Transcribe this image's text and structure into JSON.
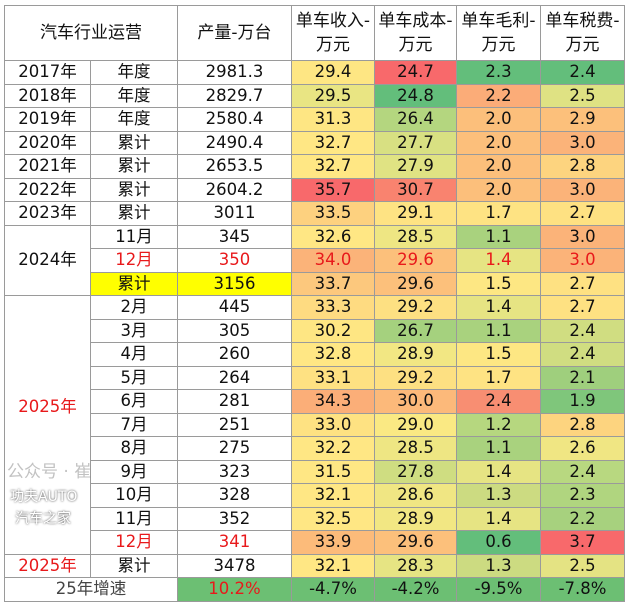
{
  "header": {
    "col_category": "汽车行业运营",
    "col_production": "产量-万台",
    "col_revenue": "单车收入-万元",
    "col_cost": "单车成本-万元",
    "col_margin": "单车毛利-万元",
    "col_tax": "单车税费-万元"
  },
  "rows": [
    {
      "year": "2017年",
      "period": "年度",
      "prod": "2981.3",
      "vals": [
        "29.4",
        "24.7",
        "2.3",
        "2.4"
      ],
      "colors": [
        "#fee683",
        "#f8696b",
        "#63be7b",
        "#63be7b"
      ]
    },
    {
      "year": "2018年",
      "period": "年度",
      "prod": "2829.7",
      "vals": [
        "29.5",
        "24.8",
        "2.2",
        "2.5"
      ],
      "colors": [
        "#e9e583",
        "#63be7b",
        "#fbac78",
        "#dfe283"
      ]
    },
    {
      "year": "2019年",
      "period": "年度",
      "prod": "2580.4",
      "vals": [
        "31.3",
        "26.4",
        "2.0",
        "2.9"
      ],
      "colors": [
        "#fee683",
        "#b4d67f",
        "#fcbf7b",
        "#fcc07b"
      ]
    },
    {
      "year": "2020年",
      "period": "累计",
      "prod": "2490.4",
      "vals": [
        "32.7",
        "27.7",
        "2.0",
        "3.0"
      ],
      "colors": [
        "#ffe784",
        "#d8e082",
        "#fcbf7b",
        "#fbb379"
      ]
    },
    {
      "year": "2021年",
      "period": "累计",
      "prod": "2653.5",
      "vals": [
        "32.7",
        "27.9",
        "2.0",
        "2.8"
      ],
      "colors": [
        "#ffe784",
        "#e0e383",
        "#fcbf7b",
        "#fdd47f"
      ]
    },
    {
      "year": "2022年",
      "period": "累计",
      "prod": "2604.2",
      "vals": [
        "35.7",
        "30.7",
        "2.0",
        "3.0"
      ],
      "colors": [
        "#f8696b",
        "#f9836f",
        "#fcbf7b",
        "#fbb379"
      ]
    },
    {
      "year": "2023年",
      "period": "累计",
      "prod": "3011",
      "vals": [
        "33.5",
        "29.1",
        "1.7",
        "2.7"
      ],
      "colors": [
        "#fdd17f",
        "#fee383",
        "#fee383",
        "#fee182"
      ]
    },
    {
      "year": "2024年",
      "span": 3,
      "period": "11月",
      "prod": "345",
      "vals": [
        "32.6",
        "28.5",
        "1.1",
        "3.0"
      ],
      "colors": [
        "#ffe784",
        "#eee683",
        "#a9d27e",
        "#fbb379"
      ]
    },
    {
      "period": "12月",
      "prod": "350",
      "red": "all",
      "vals": [
        "34.0",
        "29.6",
        "1.4",
        "3.0"
      ],
      "colors": [
        "#fbb379",
        "#fcc07b",
        "#e6e483",
        "#fbb379"
      ]
    },
    {
      "period": "累计",
      "prod": "3156",
      "highlight": true,
      "vals": [
        "33.7",
        "29.6",
        "1.5",
        "2.7"
      ],
      "colors": [
        "#fcc87d",
        "#fcc07b",
        "#fde783",
        "#fee182"
      ]
    },
    {
      "year": "2025年",
      "yearRed": true,
      "span": 11,
      "period": "2月",
      "prod": "445",
      "vals": [
        "33.3",
        "29.2",
        "1.4",
        "2.7"
      ],
      "colors": [
        "#fedb81",
        "#fde082",
        "#e6e483",
        "#fee182"
      ]
    },
    {
      "period": "3月",
      "prod": "305",
      "vals": [
        "30.2",
        "26.7",
        "1.1",
        "2.4"
      ],
      "colors": [
        "#fee683",
        "#a5d17e",
        "#a9d27e",
        "#d0dd81"
      ]
    },
    {
      "period": "4月",
      "prod": "260",
      "vals": [
        "32.8",
        "28.9",
        "1.5",
        "2.4"
      ],
      "colors": [
        "#ffe784",
        "#f2e783",
        "#fde783",
        "#d0dd81"
      ]
    },
    {
      "period": "5月",
      "prod": "264",
      "vals": [
        "33.1",
        "29.2",
        "1.7",
        "2.1"
      ],
      "colors": [
        "#fee182",
        "#fde082",
        "#fee383",
        "#9fcf7d"
      ]
    },
    {
      "period": "6月",
      "prod": "281",
      "vals": [
        "34.3",
        "30.0",
        "2.4",
        "1.9"
      ],
      "colors": [
        "#fbae78",
        "#fcb97a",
        "#f88e72",
        "#7fc67b"
      ]
    },
    {
      "period": "7月",
      "prod": "251",
      "vals": [
        "33.0",
        "29.0",
        "1.2",
        "2.8"
      ],
      "colors": [
        "#fee282",
        "#fae983",
        "#b6d77f",
        "#fdd47f"
      ]
    },
    {
      "period": "8月",
      "prod": "275",
      "vals": [
        "32.2",
        "28.5",
        "1.1",
        "2.6"
      ],
      "colors": [
        "#ffe784",
        "#eee683",
        "#a9d27e",
        "#f0e683"
      ]
    },
    {
      "period": "9月",
      "prod": "323",
      "vals": [
        "31.5",
        "27.8",
        "1.4",
        "2.4"
      ],
      "colors": [
        "#ffe784",
        "#cfdd81",
        "#e6e483",
        "#b8d880"
      ]
    },
    {
      "period": "10月",
      "prod": "328",
      "vals": [
        "32.1",
        "28.6",
        "1.3",
        "2.3"
      ],
      "colors": [
        "#ffe784",
        "#f0e683",
        "#ccdb81",
        "#b0d57f"
      ]
    },
    {
      "period": "11月",
      "prod": "352",
      "vals": [
        "32.5",
        "28.9",
        "1.4",
        "2.2"
      ],
      "colors": [
        "#ffe784",
        "#f2e783",
        "#e6e483",
        "#a7d17e"
      ]
    },
    {
      "period": "12月",
      "prod": "341",
      "red": "label",
      "vals": [
        "33.9",
        "29.6",
        "0.6",
        "3.7"
      ],
      "colors": [
        "#fcbb7a",
        "#fcc07b",
        "#63be7b",
        "#f8696b"
      ]
    },
    {
      "year": "2025年",
      "yearRed": true,
      "period": "累计",
      "prod": "3478",
      "vals": [
        "32.1",
        "28.3",
        "1.3",
        "2.5"
      ],
      "colors": [
        "#ffe784",
        "#e6e483",
        "#ccdb81",
        "#e4e383"
      ]
    }
  ],
  "growth": {
    "label": "25年增速",
    "prod": "10.2%",
    "vals": [
      "-4.7%",
      "-4.2%",
      "-9.5%",
      "-7.8%"
    ],
    "color": "#6cbf73"
  },
  "watermark": {
    "text": "公众号 · 崔",
    "brand1": "功夫AUTO",
    "brand2": "汽车之家"
  }
}
